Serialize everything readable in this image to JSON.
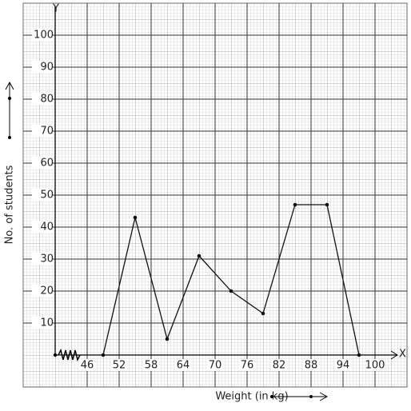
{
  "chart_data": {
    "type": "line",
    "x_label": "Weight (in kg)",
    "y_label": "No. of students",
    "x_axis_name": "X",
    "y_axis_name": "Y",
    "x": [
      49,
      55,
      61,
      67,
      73,
      79,
      85,
      91,
      97
    ],
    "values": [
      0,
      43,
      5,
      31,
      20,
      13,
      47,
      47,
      0
    ],
    "color": "#111",
    "xlim": [
      40,
      103
    ],
    "ylim": [
      0,
      110
    ],
    "xticks": [
      46,
      52,
      58,
      64,
      70,
      76,
      82,
      88,
      94,
      100
    ],
    "yticks": [
      10,
      20,
      30,
      40,
      50,
      60,
      70,
      80,
      90,
      100
    ],
    "grid": true
  }
}
